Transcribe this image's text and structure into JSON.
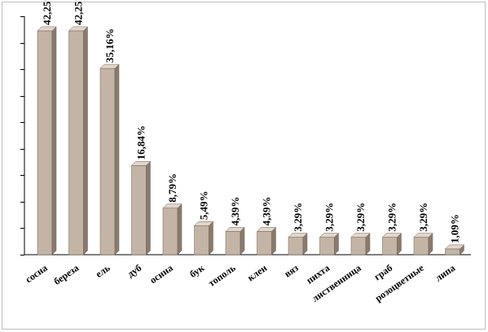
{
  "chart_data": {
    "type": "bar",
    "categories": [
      "сосна",
      "береза",
      "ель",
      "дуб",
      "осина",
      "бук",
      "тополь",
      "клен",
      "вяз",
      "пихта",
      "лиственница",
      "граб",
      "розоцветные",
      "липа"
    ],
    "values": [
      42.25,
      42.25,
      35.16,
      16.84,
      8.79,
      5.49,
      4.39,
      4.39,
      3.29,
      3.29,
      3.29,
      3.29,
      3.29,
      1.09
    ],
    "data_labels": [
      "42,25%",
      "42,25%",
      "35,16%",
      "16,84%",
      "8,79%",
      "5,49%",
      "4,39%",
      "4,39%",
      "3,29%",
      "3,29%",
      "3,29%",
      "3,29%",
      "3,29%",
      "1,09%"
    ],
    "title": "",
    "xlabel": "",
    "ylabel": "",
    "ylim": [
      0,
      45
    ],
    "y_gridline_step": 5,
    "grid": false,
    "legend": "none",
    "style": "3d-column",
    "colors": {
      "bar_front": "#c4b4a6",
      "bar_side": "#8a7a6e",
      "bar_top": "#e2d6cb",
      "axis": "#000000",
      "tick": "#000000"
    }
  }
}
